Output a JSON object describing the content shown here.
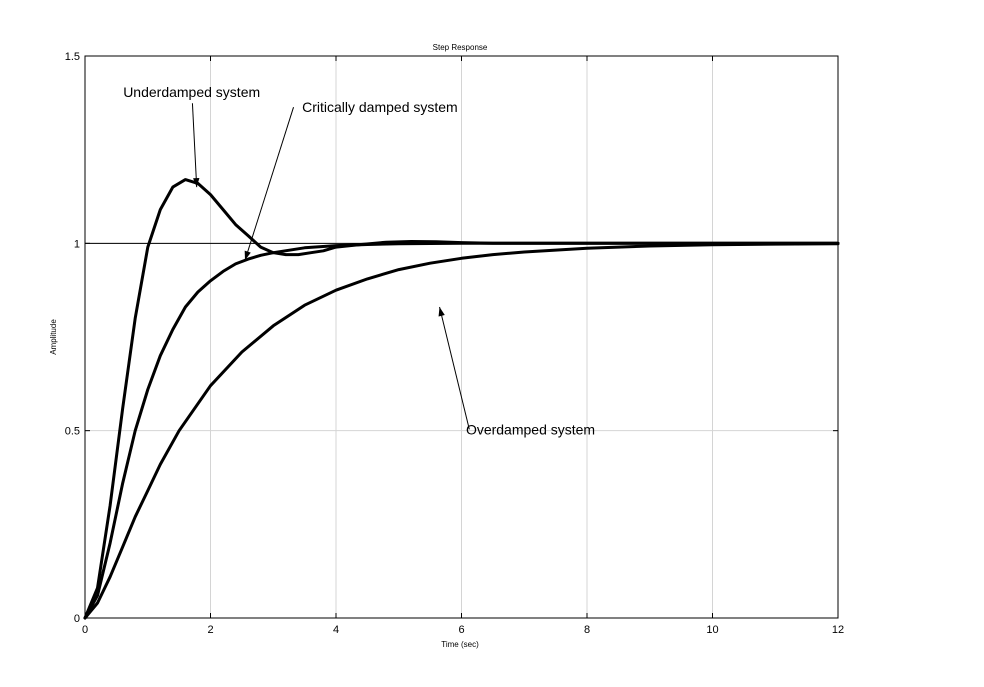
{
  "chart_data": {
    "type": "line",
    "title": "Step Response",
    "xlabel": "Time (sec)",
    "ylabel": "Amplitude",
    "xlim": [
      0,
      12
    ],
    "ylim": [
      0,
      1.5
    ],
    "xticks": [
      0,
      2,
      4,
      6,
      8,
      10,
      12
    ],
    "yticks": [
      0,
      0.5,
      1,
      1.5
    ],
    "xtick_labels": [
      "0",
      "2",
      "4",
      "6",
      "8",
      "10",
      "12"
    ],
    "ytick_labels": [
      "0",
      "0.5",
      "1",
      "1.5"
    ],
    "grid": true,
    "reference_line_y": 1,
    "series": [
      {
        "x": [
          0,
          0.2,
          0.4,
          0.6,
          0.8,
          1.0,
          1.2,
          1.4,
          1.6,
          1.8,
          2.0,
          2.2,
          2.4,
          2.6,
          2.8,
          3.0,
          3.2,
          3.4,
          3.6,
          3.8,
          4.0,
          4.4,
          4.8,
          5.2,
          5.6,
          6.0,
          6.5,
          7.0,
          8.0,
          9.0,
          10.0,
          11.0,
          12.0
        ],
        "y": [
          0,
          0.08,
          0.3,
          0.56,
          0.8,
          0.99,
          1.09,
          1.15,
          1.17,
          1.16,
          1.13,
          1.09,
          1.05,
          1.02,
          0.99,
          0.975,
          0.97,
          0.97,
          0.975,
          0.98,
          0.99,
          0.997,
          1.003,
          1.005,
          1.004,
          1.002,
          1.0,
          1.0,
          1.0,
          1.0,
          1.0,
          1.0,
          1.0
        ]
      },
      {
        "x": [
          0,
          0.2,
          0.4,
          0.6,
          0.8,
          1.0,
          1.2,
          1.4,
          1.6,
          1.8,
          2.0,
          2.2,
          2.4,
          2.6,
          2.8,
          3.0,
          3.5,
          4.0,
          4.5,
          5.0,
          6.0,
          7.0,
          8.0,
          9.0,
          10.0,
          11.0,
          12.0
        ],
        "y": [
          0,
          0.06,
          0.2,
          0.36,
          0.5,
          0.61,
          0.7,
          0.77,
          0.83,
          0.87,
          0.9,
          0.925,
          0.945,
          0.958,
          0.968,
          0.975,
          0.988,
          0.994,
          0.997,
          0.999,
          1.0,
          1.0,
          1.0,
          1.0,
          1.0,
          1.0,
          1.0
        ]
      },
      {
        "x": [
          0,
          0.2,
          0.4,
          0.6,
          0.8,
          1.0,
          1.2,
          1.5,
          2.0,
          2.5,
          3.0,
          3.5,
          4.0,
          4.5,
          5.0,
          5.5,
          6.0,
          6.5,
          7.0,
          7.5,
          8.0,
          9.0,
          10.0,
          11.0,
          12.0
        ],
        "y": [
          0,
          0.04,
          0.11,
          0.19,
          0.27,
          0.34,
          0.41,
          0.5,
          0.62,
          0.71,
          0.78,
          0.835,
          0.875,
          0.905,
          0.93,
          0.947,
          0.96,
          0.97,
          0.977,
          0.982,
          0.987,
          0.993,
          0.996,
          0.998,
          0.999
        ]
      }
    ],
    "annotations": [
      {
        "text": "Underdamped system",
        "x": 1.7,
        "y": 1.39,
        "arrow_to": [
          1.78,
          1.15
        ]
      },
      {
        "text": "Critically damped system",
        "x": 4.7,
        "y": 1.35,
        "arrow_to": [
          2.55,
          0.955
        ]
      },
      {
        "text": "Overdamped system",
        "x": 7.1,
        "y": 0.49,
        "arrow_to": [
          5.65,
          0.83
        ]
      }
    ]
  }
}
